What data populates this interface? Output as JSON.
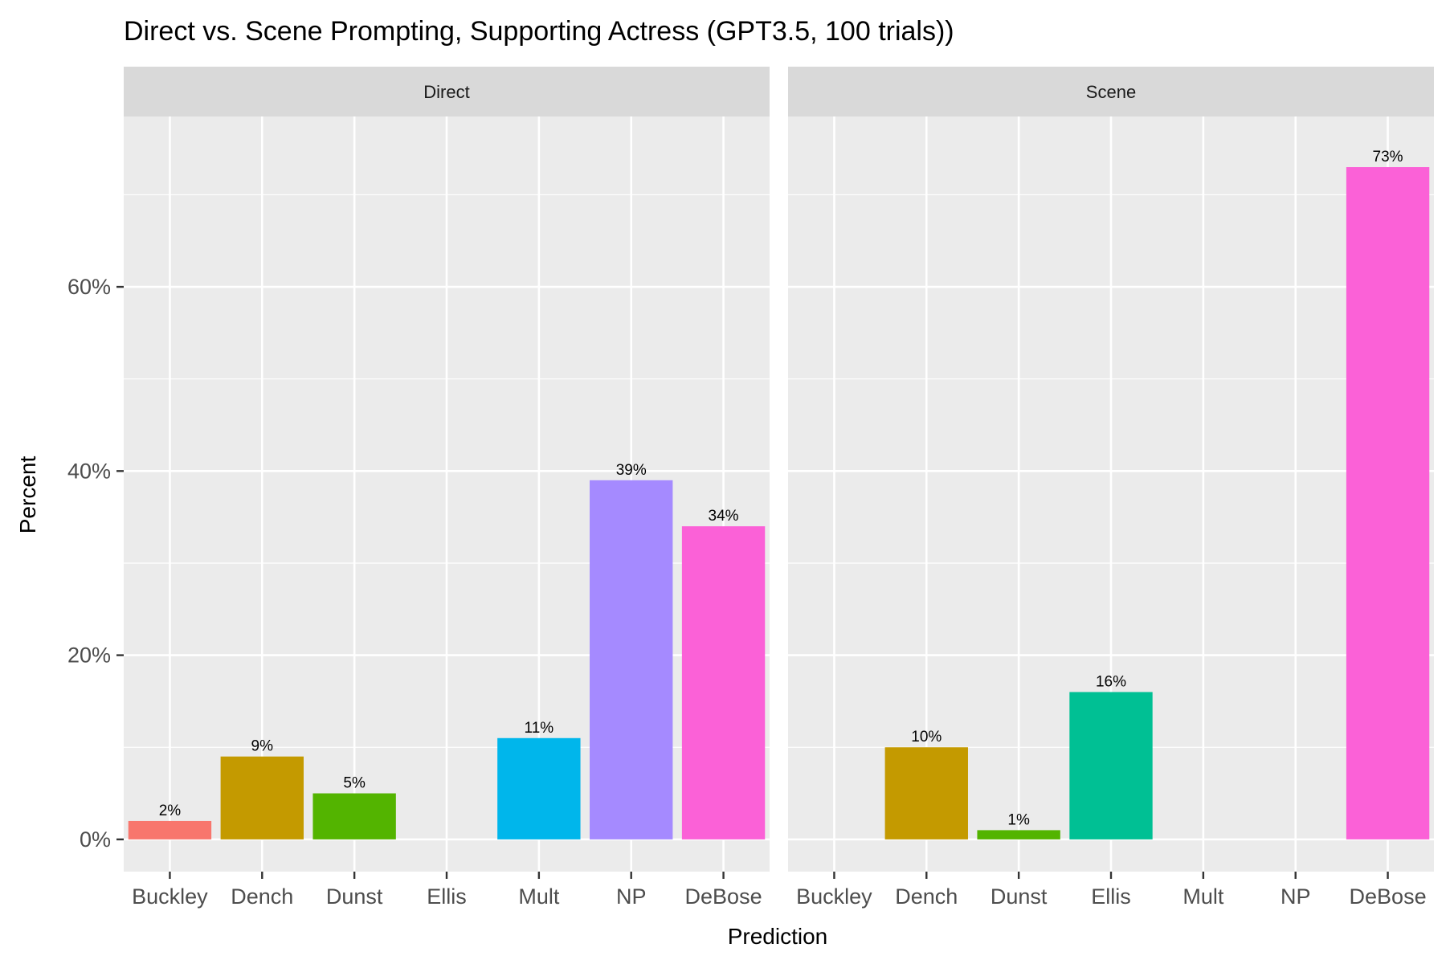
{
  "chart_data": {
    "type": "bar",
    "title": "Direct vs. Scene Prompting, Supporting Actress (GPT3.5, 100 trials))",
    "xlabel": "Prediction",
    "ylabel": "Percent",
    "ylim": [
      -3.5,
      78.5
    ],
    "yticks": [
      {
        "value": 0,
        "label": "0%"
      },
      {
        "value": 20,
        "label": "20%"
      },
      {
        "value": 40,
        "label": "40%"
      },
      {
        "value": 60,
        "label": "60%"
      }
    ],
    "categories": [
      "Buckley",
      "Dench",
      "Dunst",
      "Ellis",
      "Mult",
      "NP",
      "DeBose"
    ],
    "colors": {
      "Buckley": "#F8766D",
      "Dench": "#C49A00",
      "Dunst": "#53B400",
      "Ellis": "#00C094",
      "Mult": "#00B6EB",
      "NP": "#A58AFF",
      "DeBose": "#FB61D7"
    },
    "panels": [
      {
        "name": "Direct",
        "values": [
          2,
          9,
          5,
          null,
          11,
          39,
          34
        ],
        "labels": [
          "2%",
          "9%",
          "5%",
          null,
          "11%",
          "39%",
          "34%"
        ]
      },
      {
        "name": "Scene",
        "values": [
          null,
          10,
          1,
          16,
          null,
          null,
          73
        ],
        "labels": [
          null,
          "10%",
          "1%",
          "16%",
          null,
          null,
          "73%"
        ]
      }
    ],
    "grid": true,
    "legend": "none"
  }
}
